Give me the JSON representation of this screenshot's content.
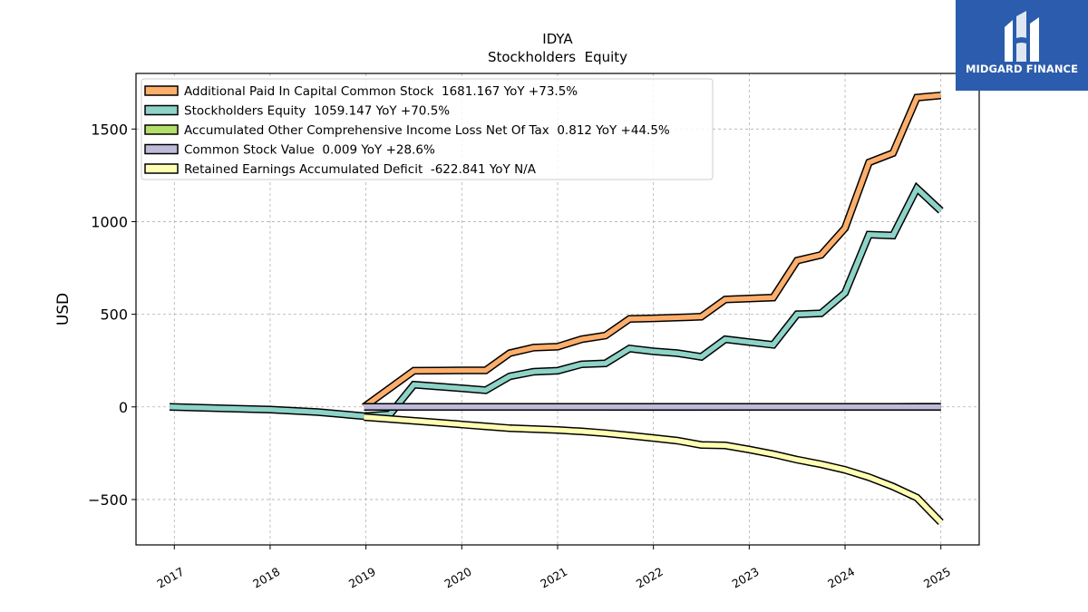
{
  "brand": {
    "name": "MIDGARD FINANCE",
    "logo_icon": "midgard-finance-logo-icon",
    "bg_color": "#2b5cad"
  },
  "chart_data": {
    "type": "line",
    "title": "IDYA",
    "subtitle": "Stockholders  Equity",
    "xlabel": "",
    "ylabel": "USD",
    "xlim": [
      2016.6,
      2025.4
    ],
    "ylim": [
      -745,
      1800
    ],
    "x_ticks": [
      "2017",
      "2018",
      "2019",
      "2020",
      "2021",
      "2022",
      "2023",
      "2024",
      "2025"
    ],
    "y_ticks": [
      -500,
      0,
      500,
      1000,
      1500
    ],
    "y_tick_labels": [
      "−500",
      "0",
      "500",
      "1000",
      "1500"
    ],
    "grid": true,
    "legend_position": "top-left",
    "series": [
      {
        "name": "Additional Paid In Capital Common Stock  1681.167 YoY +73.5%",
        "color": "#fdae6b",
        "points": [
          [
            2018.98,
            0
          ],
          [
            2019.5,
            195
          ],
          [
            2019.75,
            196
          ],
          [
            2020.0,
            197
          ],
          [
            2020.25,
            197
          ],
          [
            2020.5,
            290
          ],
          [
            2020.75,
            320
          ],
          [
            2021.0,
            325
          ],
          [
            2021.25,
            365
          ],
          [
            2021.5,
            385
          ],
          [
            2021.75,
            475
          ],
          [
            2022.0,
            478
          ],
          [
            2022.25,
            482
          ],
          [
            2022.5,
            487
          ],
          [
            2022.75,
            580
          ],
          [
            2023.0,
            585
          ],
          [
            2023.25,
            590
          ],
          [
            2023.5,
            790
          ],
          [
            2023.75,
            820
          ],
          [
            2024.0,
            965
          ],
          [
            2024.25,
            1320
          ],
          [
            2024.5,
            1370
          ],
          [
            2024.75,
            1670
          ],
          [
            2025.0,
            1681
          ]
        ]
      },
      {
        "name": "Stockholders Equity  1059.147 YoY +70.5%",
        "color": "#8dd3c7",
        "points": [
          [
            2016.95,
            0
          ],
          [
            2017.5,
            -8
          ],
          [
            2018.0,
            -15
          ],
          [
            2018.5,
            -28
          ],
          [
            2018.98,
            -50
          ],
          [
            2019.25,
            -40
          ],
          [
            2019.5,
            120
          ],
          [
            2019.75,
            110
          ],
          [
            2020.0,
            100
          ],
          [
            2020.25,
            90
          ],
          [
            2020.5,
            165
          ],
          [
            2020.75,
            190
          ],
          [
            2021.0,
            195
          ],
          [
            2021.25,
            230
          ],
          [
            2021.5,
            235
          ],
          [
            2021.75,
            315
          ],
          [
            2022.0,
            300
          ],
          [
            2022.25,
            290
          ],
          [
            2022.5,
            270
          ],
          [
            2022.75,
            365
          ],
          [
            2023.0,
            350
          ],
          [
            2023.25,
            335
          ],
          [
            2023.5,
            500
          ],
          [
            2023.75,
            505
          ],
          [
            2024.0,
            615
          ],
          [
            2024.25,
            930
          ],
          [
            2024.5,
            925
          ],
          [
            2024.75,
            1180
          ],
          [
            2025.0,
            1059
          ]
        ]
      },
      {
        "name": "Accumulated Other Comprehensive Income Loss Net Of Tax  0.812 YoY +44.5%",
        "color": "#b3de69",
        "points": [
          [
            2018.98,
            0
          ],
          [
            2019.25,
            0.1
          ],
          [
            2019.5,
            0.3
          ],
          [
            2019.75,
            0.5
          ],
          [
            2020.0,
            0.3
          ],
          [
            2020.25,
            0.2
          ],
          [
            2020.5,
            0.4
          ],
          [
            2021.0,
            0.1
          ],
          [
            2021.5,
            -0.2
          ],
          [
            2022.0,
            -0.5
          ],
          [
            2022.5,
            -0.8
          ],
          [
            2023.0,
            -0.3
          ],
          [
            2023.5,
            0.2
          ],
          [
            2024.0,
            0.5
          ],
          [
            2024.5,
            0.6
          ],
          [
            2025.0,
            0.812
          ]
        ]
      },
      {
        "name": "Common Stock Value  0.009 YoY +28.6%",
        "color": "#bebada",
        "points": [
          [
            2018.98,
            0.004
          ],
          [
            2019.5,
            0.005
          ],
          [
            2020.0,
            0.005
          ],
          [
            2020.5,
            0.006
          ],
          [
            2021.0,
            0.006
          ],
          [
            2021.5,
            0.006
          ],
          [
            2022.0,
            0.006
          ],
          [
            2022.5,
            0.007
          ],
          [
            2023.0,
            0.007
          ],
          [
            2023.5,
            0.007
          ],
          [
            2024.0,
            0.007
          ],
          [
            2024.5,
            0.008
          ],
          [
            2025.0,
            0.009
          ]
        ]
      },
      {
        "name": "Retained Earnings Accumulated Deficit  -622.841 YoY N/A",
        "color": "#ffffb3",
        "points": [
          [
            2018.98,
            -55
          ],
          [
            2019.25,
            -65
          ],
          [
            2019.5,
            -75
          ],
          [
            2019.75,
            -85
          ],
          [
            2020.0,
            -95
          ],
          [
            2020.25,
            -105
          ],
          [
            2020.5,
            -115
          ],
          [
            2020.75,
            -120
          ],
          [
            2021.0,
            -125
          ],
          [
            2021.25,
            -132
          ],
          [
            2021.5,
            -142
          ],
          [
            2021.75,
            -155
          ],
          [
            2022.0,
            -168
          ],
          [
            2022.25,
            -182
          ],
          [
            2022.5,
            -205
          ],
          [
            2022.75,
            -208
          ],
          [
            2023.0,
            -230
          ],
          [
            2023.25,
            -255
          ],
          [
            2023.5,
            -285
          ],
          [
            2023.75,
            -310
          ],
          [
            2024.0,
            -340
          ],
          [
            2024.25,
            -380
          ],
          [
            2024.5,
            -430
          ],
          [
            2024.75,
            -490
          ],
          [
            2025.0,
            -623
          ]
        ]
      }
    ]
  }
}
